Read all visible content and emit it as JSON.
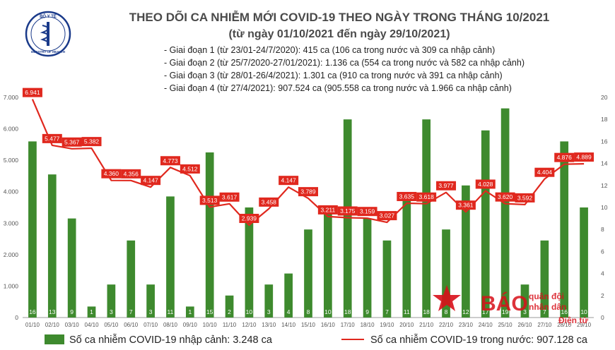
{
  "logo": {
    "text": "BỘ Y TẾ",
    "subtext": "MINISTRY OF HEALTH"
  },
  "watermark": {
    "line1": "BÁO",
    "line2": "quân đội",
    "line3": "nhân dân",
    "line4": "Điện tử"
  },
  "notes": [
    "- Giai đoạn 1 (từ 23/01-24/7/2020): 415 ca (106 ca trong nước và 309 ca nhập cảnh)",
    "- Giai đoạn 2 (từ 25/7/2020-27/01/2021): 1.136 ca (554 ca trong nước và 582 ca nhập cảnh)",
    "- Giai đoạn 3 (từ 28/01-26/4/2021): 1.301 ca (910 ca trong nước và 391 ca nhập cảnh)",
    "- Giai đoạn 4 (từ 27/4/2021): 907.524 ca (905.558 ca trong nước và 1.966 ca nhập cảnh)"
  ],
  "colors": {
    "bar": "#3e8a2e",
    "line": "#e0281e",
    "label_box": "#e0281e"
  },
  "chart_data": {
    "type": "bar",
    "title": "THEO DÕI CA NHIỄM MỚI COVID-19 THEO NGÀY TRONG THÁNG 10/2021",
    "subtitle": "(từ ngày 01/10/2021 đến ngày 29/10/2021)",
    "categories": [
      "01/10",
      "02/10",
      "03/10",
      "04/10",
      "05/10",
      "06/10",
      "07/10",
      "08/10",
      "09/10",
      "10/10",
      "11/10",
      "12/10",
      "13/10",
      "14/10",
      "15/10",
      "16/10",
      "17/10",
      "18/10",
      "19/10",
      "20/10",
      "21/10",
      "22/10",
      "23/10",
      "24/10",
      "25/10",
      "26/10",
      "27/10",
      "28/10",
      "29/10"
    ],
    "left_axis": {
      "ylim": [
        0,
        7000
      ],
      "ticks": [
        "0",
        "1.000",
        "2.000",
        "3.000",
        "4.000",
        "5.000",
        "6.000",
        "7.000"
      ],
      "tick_values": [
        0,
        1000,
        2000,
        3000,
        4000,
        5000,
        6000,
        7000
      ]
    },
    "right_axis": {
      "ylim": [
        0,
        20
      ],
      "ticks": [
        "0",
        "2",
        "4",
        "6",
        "8",
        "10",
        "12",
        "14",
        "16",
        "18",
        "20"
      ],
      "tick_values": [
        0,
        2,
        4,
        6,
        8,
        10,
        12,
        14,
        16,
        18,
        20
      ]
    },
    "series": [
      {
        "name": "Số ca nhiễm COVID-19 nhập cảnh: 3.248 ca",
        "type": "bar",
        "axis": "right",
        "values": [
          16,
          13,
          9,
          1,
          3,
          7,
          3,
          11,
          1,
          15,
          2,
          10,
          3,
          4,
          8,
          10,
          18,
          9,
          7,
          11,
          18,
          8,
          12,
          17,
          19,
          3,
          7,
          16,
          10
        ],
        "labels": [
          "16",
          "13",
          "9",
          "1",
          "3",
          "7",
          "3",
          "11",
          "1",
          "15",
          "2",
          "10",
          "3",
          "4",
          "8",
          "10",
          "18",
          "9",
          "7",
          "11",
          "18",
          "8",
          "12",
          "17",
          "19",
          "3",
          "7",
          "16",
          "10"
        ]
      },
      {
        "name": "Số ca nhiễm COVID-19 trong nước: 907.128 ca",
        "type": "line",
        "axis": "left",
        "values": [
          6941,
          5477,
          5367,
          5382,
          4360,
          4356,
          4147,
          4773,
          4512,
          3513,
          3617,
          2939,
          3458,
          4147,
          3789,
          3211,
          3175,
          3159,
          3027,
          3635,
          3618,
          3977,
          3361,
          4028,
          3620,
          3592,
          4404,
          4876,
          4889
        ],
        "labels": [
          "6.941",
          "5.477",
          "5.367",
          "5.382",
          "4.360",
          "4.356",
          "4.147",
          "4.773",
          "4.512",
          "3.513",
          "3.617",
          "2.939",
          "3.458",
          "4.147",
          "3.789",
          "3.211",
          "3.175",
          "3.159",
          "3.027",
          "3.635",
          "3.618",
          "3.977",
          "3.361",
          "4.028",
          "3.620",
          "3.592",
          "4.404",
          "4.876",
          "4.889"
        ]
      }
    ],
    "legend_position": "bottom"
  }
}
